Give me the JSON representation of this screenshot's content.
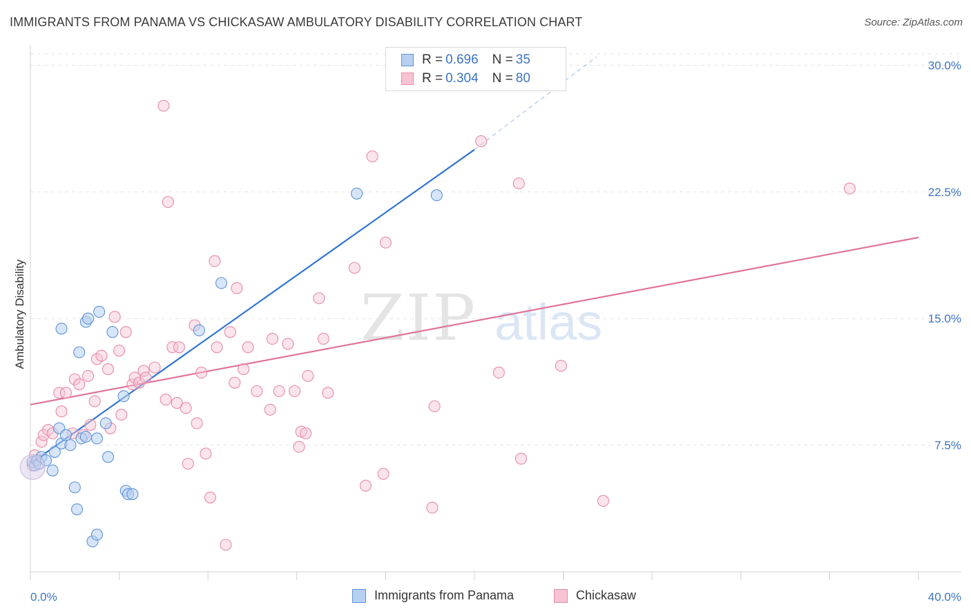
{
  "title": "IMMIGRANTS FROM PANAMA VS CHICKASAW AMBULATORY DISABILITY CORRELATION CHART",
  "source": "Source: ZipAtlas.com",
  "watermark": {
    "zip": "ZIP",
    "atlas": "atlas"
  },
  "colors": {
    "blue_fill": "#b7d0f2",
    "blue_stroke": "#5e93d6",
    "blue_line": "#2f74d0",
    "pink_fill": "#f6c3d3",
    "pink_stroke": "#e68aa8",
    "pink_line": "#e0739a",
    "tick_text": "#3b74c4",
    "grid": "#e3e3e3"
  },
  "legend": {
    "rows": [
      {
        "r_label": "R = ",
        "r_value": "0.696",
        "n_label": "N = ",
        "n_value": "35"
      },
      {
        "r_label": "R = ",
        "r_value": "0.304",
        "n_label": "N = ",
        "n_value": "80"
      }
    ]
  },
  "bottom_legend": [
    "Immigrants from Panama",
    "Chickasaw"
  ],
  "chart_data": {
    "type": "scatter",
    "title": "IMMIGRANTS FROM PANAMA VS CHICKASAW AMBULATORY DISABILITY CORRELATION CHART",
    "xlabel": "",
    "ylabel": "Ambulatory Disability",
    "xlim": [
      0,
      40
    ],
    "ylim": [
      0,
      31
    ],
    "x_tick_labels": [
      "0.0%",
      "40.0%"
    ],
    "y_ticks": [
      7.5,
      15.0,
      22.5,
      30.0
    ],
    "y_tick_labels": [
      "7.5%",
      "15.0%",
      "22.5%",
      "30.0%"
    ],
    "grid": true,
    "legend_position": "top-center",
    "series": [
      {
        "name": "Immigrants from Panama",
        "stats": {
          "R": 0.696,
          "N": 35
        },
        "points": [
          [
            0.1,
            6.5
          ],
          [
            0.2,
            6.3
          ],
          [
            0.3,
            6.6
          ],
          [
            0.4,
            6.4
          ],
          [
            0.5,
            6.8
          ],
          [
            0.7,
            6.6
          ],
          [
            1.0,
            6.0
          ],
          [
            1.1,
            7.1
          ],
          [
            1.3,
            8.5
          ],
          [
            1.4,
            7.6
          ],
          [
            1.6,
            8.1
          ],
          [
            1.8,
            7.5
          ],
          [
            2.0,
            5.0
          ],
          [
            2.1,
            3.7
          ],
          [
            2.3,
            7.9
          ],
          [
            2.5,
            8.0
          ],
          [
            2.8,
            1.8
          ],
          [
            3.0,
            2.2
          ],
          [
            3.0,
            7.9
          ],
          [
            3.4,
            8.8
          ],
          [
            3.5,
            6.8
          ],
          [
            3.7,
            14.2
          ],
          [
            4.2,
            10.4
          ],
          [
            4.3,
            4.8
          ],
          [
            4.4,
            4.6
          ],
          [
            4.6,
            4.6
          ],
          [
            1.4,
            14.4
          ],
          [
            2.2,
            13.0
          ],
          [
            2.5,
            14.8
          ],
          [
            2.6,
            15.0
          ],
          [
            3.1,
            15.4
          ],
          [
            7.6,
            14.3
          ],
          [
            8.6,
            17.1
          ],
          [
            14.7,
            22.4
          ],
          [
            18.3,
            22.3
          ]
        ],
        "trend": {
          "x": [
            0.0,
            20.0
          ],
          "y": [
            6.4,
            25.0
          ],
          "dashed_to": [
            25.5,
            30.5
          ]
        }
      },
      {
        "name": "Chickasaw",
        "stats": {
          "R": 0.304,
          "N": 80
        },
        "points": [
          [
            0.2,
            6.9
          ],
          [
            0.3,
            6.6
          ],
          [
            0.5,
            7.7
          ],
          [
            0.6,
            8.1
          ],
          [
            0.8,
            8.4
          ],
          [
            1.0,
            8.2
          ],
          [
            1.3,
            10.6
          ],
          [
            1.4,
            9.5
          ],
          [
            1.6,
            10.6
          ],
          [
            1.9,
            8.2
          ],
          [
            2.0,
            11.4
          ],
          [
            2.2,
            11.1
          ],
          [
            2.4,
            8.1
          ],
          [
            2.6,
            11.6
          ],
          [
            2.7,
            8.7
          ],
          [
            2.9,
            10.1
          ],
          [
            3.0,
            12.6
          ],
          [
            3.2,
            12.8
          ],
          [
            3.5,
            12.0
          ],
          [
            3.6,
            8.5
          ],
          [
            3.8,
            15.1
          ],
          [
            4.0,
            13.1
          ],
          [
            4.1,
            9.3
          ],
          [
            4.3,
            14.2
          ],
          [
            4.6,
            11.1
          ],
          [
            4.7,
            11.5
          ],
          [
            4.9,
            11.2
          ],
          [
            5.1,
            11.9
          ],
          [
            5.2,
            11.5
          ],
          [
            5.6,
            12.1
          ],
          [
            6.0,
            27.6
          ],
          [
            6.1,
            10.2
          ],
          [
            6.2,
            21.9
          ],
          [
            6.4,
            13.3
          ],
          [
            6.6,
            10.0
          ],
          [
            6.7,
            13.3
          ],
          [
            7.0,
            9.7
          ],
          [
            7.1,
            6.4
          ],
          [
            7.4,
            14.6
          ],
          [
            7.5,
            8.8
          ],
          [
            7.7,
            11.8
          ],
          [
            7.9,
            7.0
          ],
          [
            8.1,
            4.4
          ],
          [
            8.3,
            18.4
          ],
          [
            8.4,
            13.3
          ],
          [
            8.8,
            1.6
          ],
          [
            9.0,
            14.2
          ],
          [
            9.2,
            11.2
          ],
          [
            9.3,
            16.8
          ],
          [
            9.6,
            12.0
          ],
          [
            9.8,
            13.3
          ],
          [
            10.2,
            10.7
          ],
          [
            10.8,
            9.6
          ],
          [
            10.9,
            13.8
          ],
          [
            11.2,
            10.7
          ],
          [
            11.6,
            13.5
          ],
          [
            11.9,
            10.7
          ],
          [
            12.1,
            7.4
          ],
          [
            12.2,
            8.3
          ],
          [
            12.4,
            8.2
          ],
          [
            12.5,
            11.6
          ],
          [
            13.0,
            16.2
          ],
          [
            13.2,
            13.8
          ],
          [
            13.4,
            10.6
          ],
          [
            14.6,
            18.0
          ],
          [
            15.1,
            5.1
          ],
          [
            15.4,
            24.6
          ],
          [
            15.9,
            5.8
          ],
          [
            16.0,
            19.5
          ],
          [
            16.6,
            29.8
          ],
          [
            18.1,
            3.8
          ],
          [
            18.2,
            9.8
          ],
          [
            20.3,
            25.5
          ],
          [
            21.1,
            11.8
          ],
          [
            22.0,
            23.0
          ],
          [
            22.1,
            6.7
          ],
          [
            23.9,
            12.2
          ],
          [
            25.8,
            4.2
          ],
          [
            36.9,
            22.7
          ],
          [
            0.1,
            6.3
          ]
        ],
        "trend": {
          "x": [
            0.0,
            40.0
          ],
          "y": [
            9.9,
            19.8
          ]
        }
      }
    ]
  }
}
